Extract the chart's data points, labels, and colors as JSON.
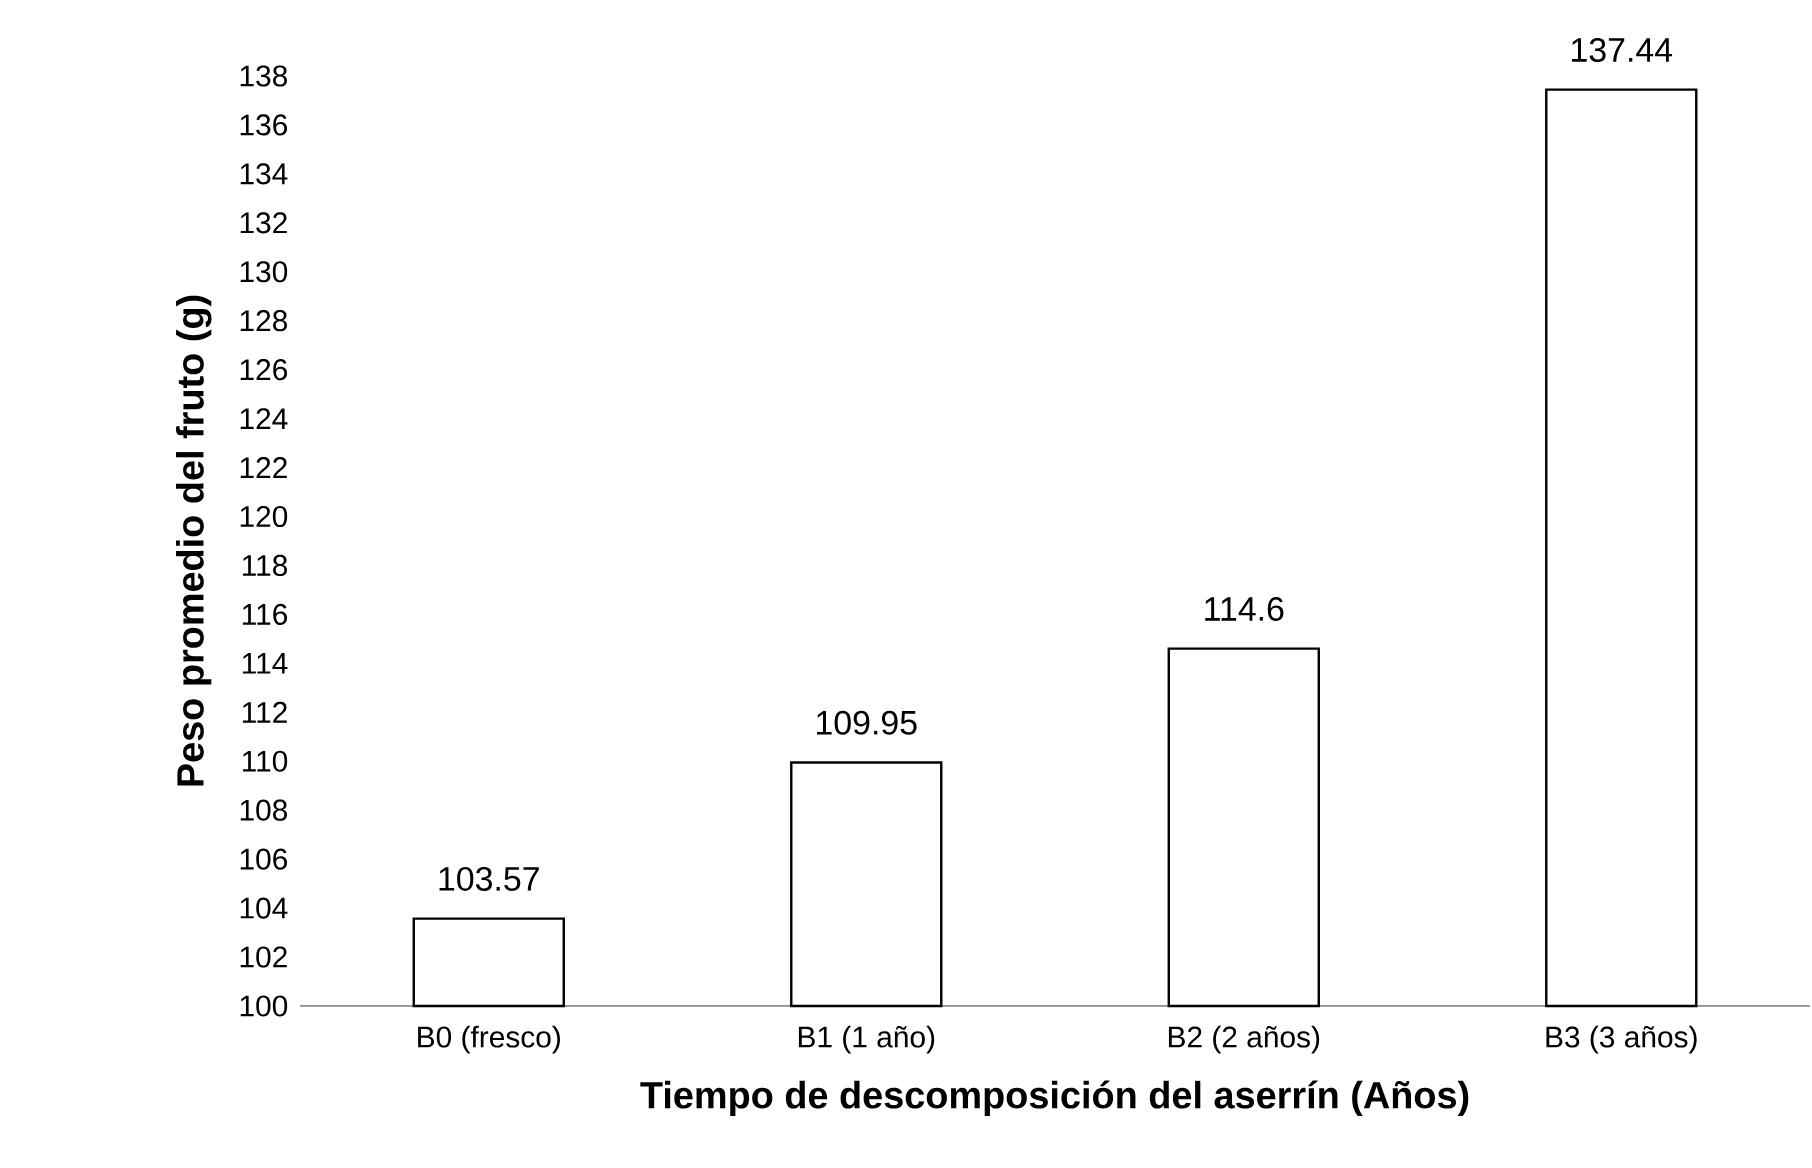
{
  "chart_data": {
    "type": "bar",
    "xlabel": "Tiempo de descomposición del aserrín (Años)",
    "ylabel": "Peso promedio del fruto (g)",
    "categories": [
      "B0 (fresco)",
      "B1 (1 año)",
      "B2 (2 años)",
      "B3 (3 años)"
    ],
    "values": [
      103.57,
      109.95,
      114.6,
      137.44
    ],
    "color": "#ffffff",
    "data_labels": true,
    "grid": false,
    "ylim": [
      100,
      138
    ],
    "yticks": [
      100,
      102,
      104,
      106,
      108,
      110,
      112,
      114,
      116,
      118,
      120,
      122,
      124,
      126,
      128,
      130,
      132,
      134,
      136,
      138
    ]
  }
}
